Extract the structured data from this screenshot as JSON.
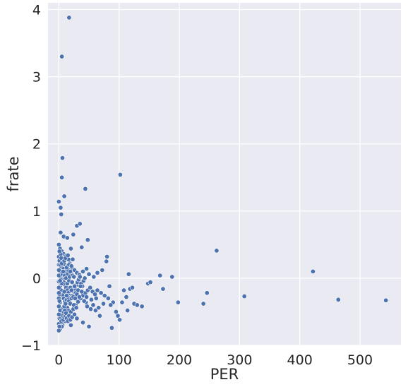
{
  "chart_data": {
    "type": "scatter",
    "title": "",
    "xlabel": "PER",
    "ylabel": "frate",
    "xlim": [
      -18,
      568
    ],
    "ylim": [
      -1,
      4.1
    ],
    "xticks": [
      0,
      100,
      200,
      300,
      400,
      500
    ],
    "yticks": [
      -1,
      0,
      1,
      2,
      3,
      4
    ],
    "xtick_labels": [
      "0",
      "100",
      "200",
      "300",
      "400",
      "500"
    ],
    "ytick_labels": [
      "−1",
      "0",
      "1",
      "2",
      "3",
      "4"
    ],
    "grid": true,
    "style": {
      "background": "#eaeaf2",
      "grid_color": "#ffffff",
      "marker_color": "#4c72b0",
      "marker_edge": "#ffffff"
    },
    "points": [
      [
        17,
        3.88
      ],
      [
        5,
        3.3
      ],
      [
        6,
        1.79
      ],
      [
        5,
        1.5
      ],
      [
        9,
        1.22
      ],
      [
        102,
        1.54
      ],
      [
        44,
        1.33
      ],
      [
        0,
        1.14
      ],
      [
        3,
        1.05
      ],
      [
        4,
        0.95
      ],
      [
        3,
        0.68
      ],
      [
        8,
        0.62
      ],
      [
        14,
        0.6
      ],
      [
        24,
        0.65
      ],
      [
        30,
        0.78
      ],
      [
        35,
        0.81
      ],
      [
        48,
        0.57
      ],
      [
        38,
        0.46
      ],
      [
        20,
        0.44
      ],
      [
        262,
        0.41
      ],
      [
        0,
        0.5
      ],
      [
        2,
        0.44
      ],
      [
        5,
        0.4
      ],
      [
        8,
        0.36
      ],
      [
        12,
        0.33
      ],
      [
        16,
        0.28
      ],
      [
        2,
        0.3
      ],
      [
        6,
        0.24
      ],
      [
        10,
        0.2
      ],
      [
        14,
        0.18
      ],
      [
        18,
        0.22
      ],
      [
        22,
        0.15
      ],
      [
        26,
        0.12
      ],
      [
        30,
        0.08
      ],
      [
        34,
        0.05
      ],
      [
        40,
        0.1
      ],
      [
        46,
        0.14
      ],
      [
        50,
        0.06
      ],
      [
        58,
        0.02
      ],
      [
        64,
        0.08
      ],
      [
        72,
        0.12
      ],
      [
        79,
        0.25
      ],
      [
        80,
        0.32
      ],
      [
        84,
        -0.12
      ],
      [
        0,
        0.2
      ],
      [
        1,
        0.12
      ],
      [
        3,
        0.08
      ],
      [
        4,
        0.02
      ],
      [
        6,
        -0.02
      ],
      [
        8,
        -0.06
      ],
      [
        10,
        -0.1
      ],
      [
        12,
        -0.14
      ],
      [
        14,
        -0.18
      ],
      [
        16,
        -0.22
      ],
      [
        18,
        -0.26
      ],
      [
        0,
        -0.05
      ],
      [
        2,
        -0.12
      ],
      [
        4,
        -0.18
      ],
      [
        6,
        -0.25
      ],
      [
        8,
        -0.3
      ],
      [
        10,
        -0.35
      ],
      [
        12,
        -0.4
      ],
      [
        14,
        -0.44
      ],
      [
        16,
        -0.48
      ],
      [
        20,
        -0.5
      ],
      [
        24,
        -0.46
      ],
      [
        28,
        -0.4
      ],
      [
        32,
        -0.35
      ],
      [
        36,
        -0.3
      ],
      [
        40,
        -0.26
      ],
      [
        44,
        -0.22
      ],
      [
        48,
        -0.18
      ],
      [
        52,
        -0.14
      ],
      [
        56,
        -0.2
      ],
      [
        60,
        -0.24
      ],
      [
        64,
        -0.18
      ],
      [
        70,
        -0.22
      ],
      [
        76,
        -0.26
      ],
      [
        82,
        -0.3
      ],
      [
        90,
        -0.36
      ],
      [
        95,
        -0.5
      ],
      [
        98,
        -0.56
      ],
      [
        101,
        -0.62
      ],
      [
        88,
        -0.74
      ],
      [
        50,
        -0.72
      ],
      [
        40,
        -0.66
      ],
      [
        30,
        -0.6
      ],
      [
        20,
        -0.7
      ],
      [
        10,
        -0.64
      ],
      [
        6,
        -0.7
      ],
      [
        2,
        -0.76
      ],
      [
        0,
        -0.68
      ],
      [
        1,
        -0.6
      ],
      [
        3,
        -0.55
      ],
      [
        5,
        -0.5
      ],
      [
        7,
        -0.45
      ],
      [
        9,
        -0.42
      ],
      [
        11,
        -0.38
      ],
      [
        13,
        -0.32
      ],
      [
        15,
        -0.28
      ],
      [
        17,
        -0.34
      ],
      [
        19,
        -0.38
      ],
      [
        21,
        -0.3
      ],
      [
        23,
        -0.26
      ],
      [
        25,
        -0.2
      ],
      [
        27,
        -0.16
      ],
      [
        29,
        -0.1
      ],
      [
        31,
        -0.06
      ],
      [
        33,
        -0.02
      ],
      [
        35,
        0.02
      ],
      [
        37,
        -0.08
      ],
      [
        39,
        -0.12
      ],
      [
        41,
        -0.04
      ],
      [
        43,
        0.0
      ],
      [
        45,
        -0.36
      ],
      [
        47,
        -0.42
      ],
      [
        53,
        -0.46
      ],
      [
        57,
        -0.4
      ],
      [
        61,
        -0.48
      ],
      [
        66,
        -0.44
      ],
      [
        68,
        -0.56
      ],
      [
        74,
        -0.38
      ],
      [
        86,
        -0.4
      ],
      [
        105,
        -0.36
      ],
      [
        108,
        -0.18
      ],
      [
        112,
        -0.28
      ],
      [
        114,
        -0.48
      ],
      [
        116,
        0.06
      ],
      [
        118,
        -0.16
      ],
      [
        122,
        -0.14
      ],
      [
        125,
        -0.38
      ],
      [
        130,
        -0.4
      ],
      [
        138,
        -0.42
      ],
      [
        148,
        -0.08
      ],
      [
        152,
        -0.06
      ],
      [
        168,
        0.04
      ],
      [
        173,
        -0.16
      ],
      [
        188,
        0.02
      ],
      [
        198,
        -0.36
      ],
      [
        240,
        -0.38
      ],
      [
        246,
        -0.22
      ],
      [
        308,
        -0.27
      ],
      [
        422,
        0.1
      ],
      [
        464,
        -0.32
      ],
      [
        543,
        -0.33
      ],
      [
        0,
        0.04
      ],
      [
        0,
        -0.3
      ],
      [
        0,
        -0.42
      ],
      [
        1,
        -0.24
      ],
      [
        2,
        -0.36
      ],
      [
        3,
        -0.02
      ],
      [
        4,
        0.16
      ],
      [
        5,
        -0.08
      ],
      [
        6,
        0.06
      ],
      [
        7,
        0.28
      ],
      [
        8,
        0.14
      ],
      [
        9,
        -0.2
      ],
      [
        10,
        0.04
      ],
      [
        11,
        0.1
      ],
      [
        12,
        0.0
      ],
      [
        13,
        -0.26
      ],
      [
        14,
        -0.08
      ],
      [
        15,
        0.06
      ],
      [
        16,
        0.12
      ],
      [
        17,
        -0.04
      ],
      [
        18,
        0.02
      ],
      [
        19,
        -0.14
      ],
      [
        20,
        0.08
      ],
      [
        21,
        -0.18
      ],
      [
        22,
        -0.06
      ],
      [
        23,
        0.04
      ],
      [
        24,
        -0.28
      ],
      [
        25,
        -0.4
      ],
      [
        26,
        -0.12
      ],
      [
        27,
        -0.3
      ],
      [
        28,
        -0.22
      ],
      [
        29,
        -0.44
      ],
      [
        30,
        -0.24
      ],
      [
        32,
        -0.18
      ],
      [
        34,
        -0.28
      ],
      [
        36,
        -0.12
      ],
      [
        38,
        -0.2
      ],
      [
        42,
        -0.34
      ],
      [
        46,
        -0.28
      ],
      [
        54,
        -0.32
      ],
      [
        62,
        -0.3
      ],
      [
        0,
        0.32
      ],
      [
        1,
        0.26
      ],
      [
        2,
        0.2
      ],
      [
        3,
        0.36
      ],
      [
        4,
        0.3
      ],
      [
        5,
        0.22
      ],
      [
        7,
        0.1
      ],
      [
        9,
        0.26
      ],
      [
        11,
        0.3
      ],
      [
        13,
        0.16
      ],
      [
        15,
        0.34
      ],
      [
        17,
        0.2
      ],
      [
        19,
        0.1
      ],
      [
        21,
        0.18
      ],
      [
        23,
        0.28
      ],
      [
        25,
        0.02
      ],
      [
        0,
        -0.14
      ],
      [
        1,
        -0.34
      ],
      [
        2,
        -0.48
      ],
      [
        3,
        -0.58
      ],
      [
        4,
        -0.64
      ],
      [
        5,
        -0.72
      ],
      [
        6,
        -0.56
      ],
      [
        7,
        -0.62
      ],
      [
        8,
        -0.5
      ],
      [
        9,
        -0.58
      ],
      [
        10,
        -0.48
      ],
      [
        11,
        -0.56
      ],
      [
        12,
        -0.52
      ],
      [
        13,
        -0.6
      ],
      [
        15,
        -0.64
      ],
      [
        17,
        -0.56
      ],
      [
        19,
        -0.62
      ],
      [
        22,
        -0.58
      ],
      [
        26,
        -0.54
      ],
      [
        0,
        -0.22
      ],
      [
        0,
        0.12
      ],
      [
        1,
        0.4
      ],
      [
        0,
        -0.54
      ],
      [
        2,
        -0.04
      ],
      [
        0,
        -0.78
      ],
      [
        1,
        -0.72
      ]
    ]
  }
}
